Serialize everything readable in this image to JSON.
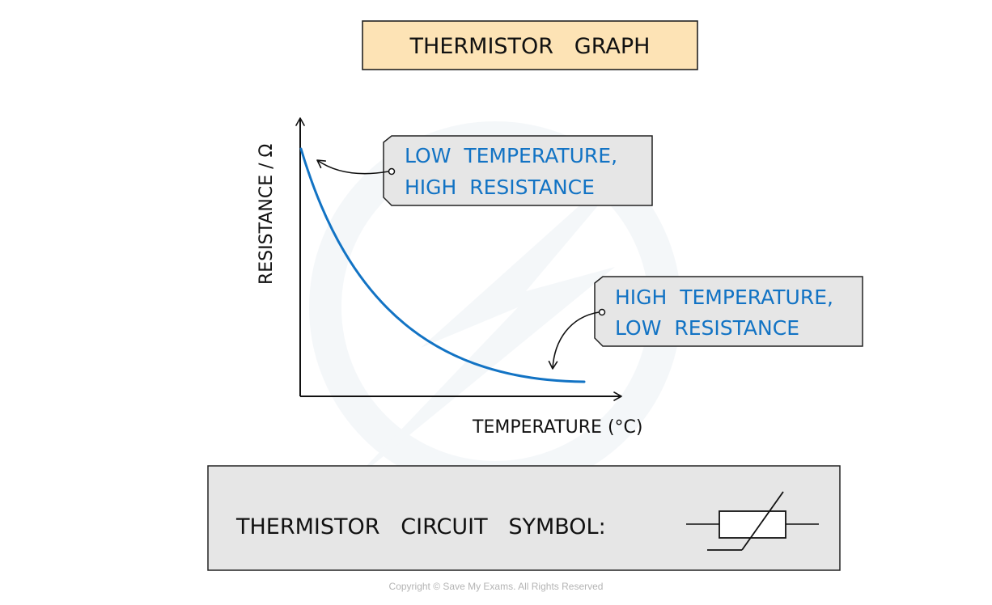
{
  "title": "THERMISTOR   GRAPH",
  "graph": {
    "y_axis_label": "RESISTANCE / Ω",
    "x_axis_label": "TEMPERATURE (°C)"
  },
  "callouts": {
    "low_temp": {
      "line1": "LOW  TEMPERATURE,",
      "line2": "HIGH  RESISTANCE"
    },
    "high_temp": {
      "line1": "HIGH  TEMPERATURE,",
      "line2": "LOW  RESISTANCE"
    }
  },
  "symbol_panel": {
    "label": "THERMISTOR   CIRCUIT   SYMBOL:"
  },
  "footer": "Copyright © Save My Exams. All Rights Reserved",
  "colors": {
    "title_fill": "#fde3b5",
    "callout_fill": "#e6e6e6",
    "panel_fill": "#e6e6e6",
    "curve": "#1273c4",
    "callout_text": "#1273c4",
    "ink": "#111111"
  }
}
